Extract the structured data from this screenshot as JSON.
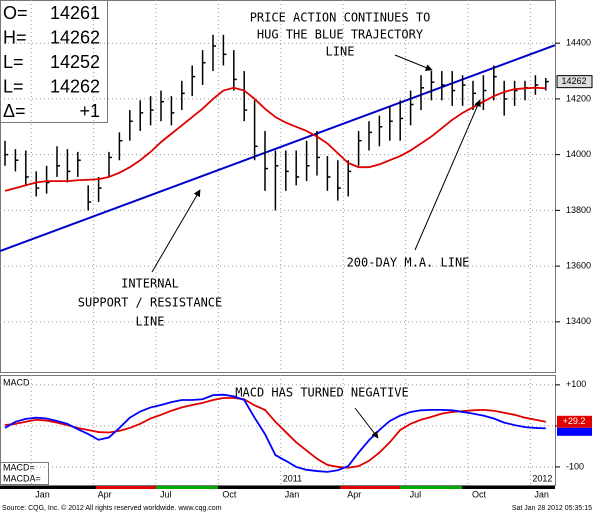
{
  "quote": {
    "rows": [
      [
        "O=",
        "14261"
      ],
      [
        "H=",
        "14262"
      ],
      [
        "L=",
        "14252"
      ],
      [
        "L=",
        "14262"
      ],
      [
        "Δ=",
        "+1"
      ]
    ]
  },
  "last_price_label": "14262",
  "footer": {
    "source": "Source: CQG, Inc. © 2012 All rights reserved worldwide. www.cqg.com",
    "timestamp": "Sat Jan 28 2012 05:35:15"
  },
  "chart_data": [
    {
      "type": "hlc",
      "bar_color": "#000000",
      "categories": [
        null,
        null,
        null,
        "Jan",
        null,
        null,
        null,
        null,
        null,
        "Apr",
        null,
        null,
        null,
        null,
        null,
        "Jul",
        null,
        null,
        null,
        null,
        null,
        "Oct",
        null,
        null,
        null,
        null,
        null,
        "Jan",
        null,
        null,
        null,
        null,
        null,
        "Apr",
        null,
        null,
        null,
        null,
        null,
        "Jul",
        null,
        null,
        null,
        null,
        null,
        "Oct",
        null,
        null,
        null,
        null,
        null,
        "Jan",
        null
      ],
      "high": [
        14050,
        14020,
        14015,
        13940,
        13960,
        14030,
        14020,
        14010,
        13890,
        13920,
        14010,
        14080,
        14160,
        14195,
        14210,
        14230,
        14210,
        14265,
        14320,
        14375,
        14430,
        14430,
        14375,
        14300,
        14195,
        14085,
        14015,
        14015,
        14015,
        14050,
        14085,
        13995,
        13980,
        13980,
        14085,
        14120,
        14140,
        14175,
        14195,
        14230,
        14285,
        14300,
        14300,
        14300,
        14285,
        14265,
        14285,
        14320,
        14265,
        14265,
        14265,
        14285,
        14275
      ],
      "low": [
        13960,
        13940,
        13890,
        13850,
        13860,
        13920,
        13900,
        13920,
        13800,
        13830,
        13920,
        13980,
        14050,
        14085,
        14105,
        14120,
        14105,
        14160,
        14210,
        14250,
        14300,
        14320,
        14230,
        14120,
        13980,
        13870,
        13800,
        13870,
        13890,
        13905,
        13925,
        13870,
        13835,
        13850,
        13960,
        14015,
        14030,
        14050,
        14050,
        14105,
        14160,
        14195,
        14195,
        14175,
        14175,
        14160,
        14160,
        14195,
        14140,
        14175,
        14195,
        14215,
        14230
      ],
      "close": [
        14000,
        13980,
        13920,
        13880,
        13900,
        13960,
        13940,
        13980,
        13830,
        13880,
        13990,
        14050,
        14120,
        14150,
        14160,
        14190,
        14150,
        14220,
        14280,
        14330,
        14390,
        14360,
        14270,
        14160,
        14030,
        13950,
        13960,
        13940,
        13920,
        13960,
        13990,
        13920,
        13880,
        13940,
        14050,
        14080,
        14100,
        14120,
        14130,
        14180,
        14240,
        14260,
        14250,
        14230,
        14250,
        14220,
        14230,
        14280,
        14200,
        14230,
        14240,
        14250,
        14262
      ],
      "ma": {
        "color": "#e00000",
        "values": [
          13870,
          13880,
          13890,
          13900,
          13905,
          13905,
          13905,
          13908,
          13910,
          13912,
          13920,
          13935,
          13955,
          13980,
          14010,
          14045,
          14075,
          14105,
          14135,
          14165,
          14200,
          14230,
          14240,
          14230,
          14200,
          14165,
          14135,
          14115,
          14100,
          14085,
          14065,
          14040,
          14005,
          13970,
          13955,
          13955,
          13965,
          13980,
          13995,
          14015,
          14040,
          14065,
          14095,
          14125,
          14150,
          14170,
          14190,
          14210,
          14225,
          14235,
          14238,
          14240,
          14238
        ]
      },
      "trendline": {
        "color": "#0000cc",
        "values": [
          13654,
          14393
        ]
      },
      "ylim": [
        13220,
        14555
      ],
      "yticks": [
        13400,
        13600,
        13800,
        14000,
        14200,
        14400
      ],
      "grid": true,
      "annotations": [
        {
          "lines": [
            "PRICE ACTION CONTINUES TO",
            "HUG THE BLUE TRAJECTORY",
            "LINE"
          ]
        },
        {
          "lines": [
            "INTERNAL",
            "SUPPORT / RESISTANCE",
            "LINE"
          ]
        },
        {
          "lines": [
            "200-DAY M.A. LINE"
          ]
        }
      ]
    },
    {
      "type": "line",
      "title": "MACD",
      "years": [
        "2011",
        "2012"
      ],
      "last_label": "+29.2",
      "series": [
        {
          "name": "MACD=",
          "color": "#0000ff",
          "values": [
            -5,
            10,
            17,
            20,
            18,
            12,
            5,
            -8,
            -20,
            -34,
            -28,
            -5,
            20,
            35,
            45,
            51,
            58,
            63,
            63,
            65,
            75,
            76,
            72,
            63,
            20,
            -20,
            -71,
            -85,
            -100,
            -107,
            -110,
            -112,
            -108,
            -98,
            -65,
            -35,
            -10,
            12,
            25,
            34,
            38,
            39,
            39,
            38,
            34,
            30,
            25,
            18,
            8,
            2,
            -3,
            -5,
            -6
          ]
        },
        {
          "name": "MACDA=",
          "color": "#e00000",
          "values": [
            2,
            5,
            10,
            15,
            13,
            8,
            2,
            -5,
            -10,
            -15,
            -16,
            -12,
            -5,
            5,
            18,
            27,
            37,
            45,
            51,
            56,
            63,
            68,
            68,
            65,
            50,
            39,
            10,
            -15,
            -40,
            -60,
            -80,
            -95,
            -100,
            -102,
            -98,
            -85,
            -65,
            -40,
            -10,
            5,
            15,
            22,
            30,
            34,
            36,
            38,
            39,
            37,
            32,
            27,
            20,
            15,
            10
          ]
        }
      ],
      "ylim": [
        -144,
        124
      ],
      "yticks": [
        {
          "value": 100,
          "label": "+100"
        },
        0,
        {
          "value": -100,
          "label": "-100"
        }
      ],
      "grid": true,
      "annotations": [
        {
          "lines": [
            "MACD HAS TURNED NEGATIVE"
          ]
        }
      ]
    }
  ]
}
